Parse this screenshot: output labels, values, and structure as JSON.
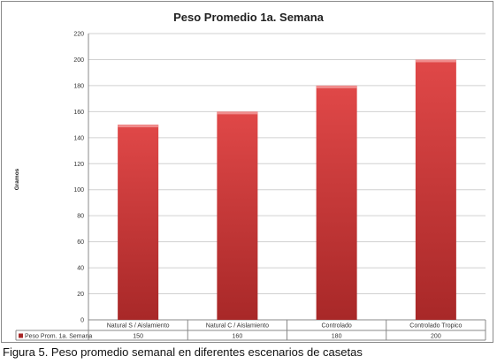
{
  "chart_data": {
    "type": "bar",
    "title": "Peso Promedio 1a. Semana",
    "ylabel": "Gramos",
    "xlabel": "",
    "categories": [
      "Natural S / Aislamiento",
      "Natural C / Aislamiento",
      "Controlado",
      "Controlado Tropico"
    ],
    "series": [
      {
        "name": "Peso Prom. 1a. Semana",
        "values": [
          150,
          160,
          180,
          200
        ]
      }
    ],
    "ylim": [
      0,
      220
    ],
    "yticks": [
      0,
      20,
      40,
      60,
      80,
      100,
      120,
      140,
      160,
      180,
      200,
      220
    ],
    "grid": true,
    "legend": "data-table",
    "colors": {
      "bar_top": "#e04848",
      "bar_bottom": "#a82828",
      "bar_cap": "#f08c8c"
    }
  },
  "caption": "Figura 5. Peso promedio semanal en diferentes escenarios de casetas"
}
